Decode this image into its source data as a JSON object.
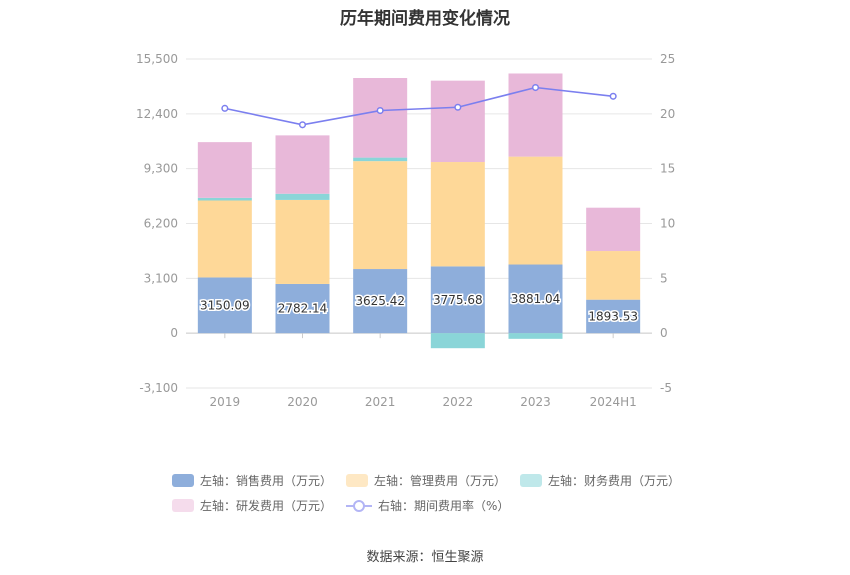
{
  "chart_data": {
    "type": "bar",
    "title": "历年期间费用变化情况",
    "categories": [
      "2019",
      "2020",
      "2021",
      "2022",
      "2023",
      "2024H1"
    ],
    "left_axis": {
      "ticks": [
        "15,500",
        "12,400",
        "9,300",
        "6,200",
        "3,100",
        "0",
        "-3,100"
      ],
      "ylim": [
        -3100,
        15500
      ]
    },
    "right_axis": {
      "ticks": [
        "25",
        "20",
        "15",
        "10",
        "5",
        "0",
        "-5"
      ],
      "ylim": [
        -5,
        25
      ]
    },
    "series": [
      {
        "name": "左轴：销售费用（万元）",
        "kind": "bar",
        "color": "#8eaedb",
        "values": [
          3150.09,
          2782.14,
          3625.42,
          3775.68,
          3881.04,
          1893.53
        ],
        "labels": [
          "3150.09",
          "2782.14",
          "3625.42",
          "3775.68",
          "3881.04",
          "1893.53"
        ]
      },
      {
        "name": "左轴：管理费用（万元）",
        "kind": "bar",
        "color": "#fed898",
        "values": [
          4350,
          4750,
          6100,
          5900,
          6100,
          2750
        ]
      },
      {
        "name": "左轴：财务费用（万元）",
        "kind": "bar",
        "color": "#8ad5d8",
        "values": [
          150,
          350,
          200,
          -850,
          -320,
          0
        ]
      },
      {
        "name": "左轴：研发费用（万元）",
        "kind": "bar",
        "color": "#e8b8d9",
        "values": [
          3150,
          3300,
          4500,
          4600,
          4700,
          2450
        ]
      },
      {
        "name": "右轴：期间费用率（%）",
        "kind": "line",
        "color": "#7b7fef",
        "values": [
          20.5,
          19.0,
          20.3,
          20.6,
          22.4,
          21.6
        ]
      }
    ],
    "legend_position": "bottom",
    "grid": true
  },
  "source": "数据来源：恒生聚源"
}
